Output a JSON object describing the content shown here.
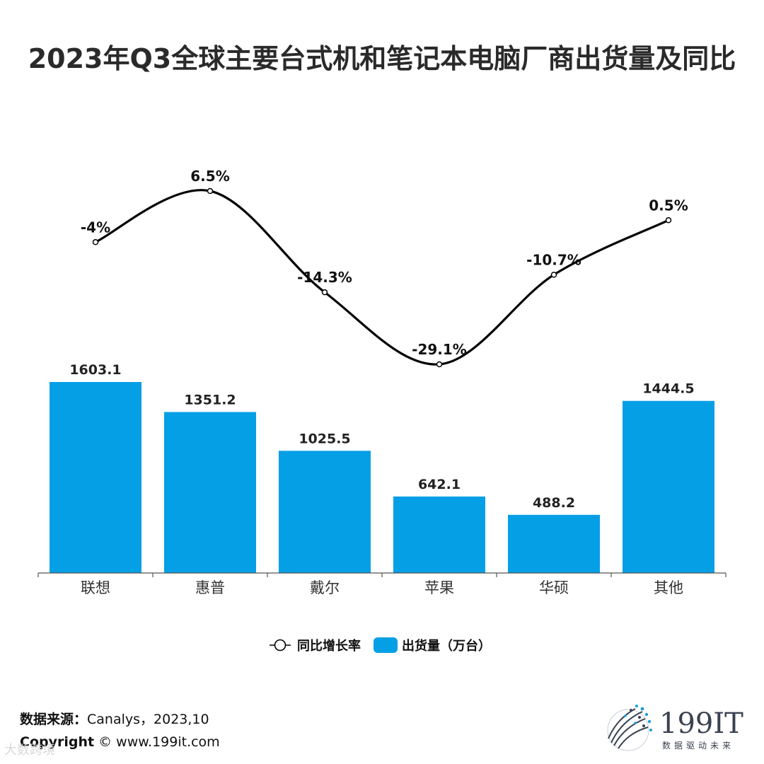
{
  "title": "2023年Q3全球主要台式机和笔记本电脑厂商出货量及同比",
  "chart_data": {
    "type": "bar",
    "categories": [
      "联想",
      "惠普",
      "戴尔",
      "苹果",
      "华硕",
      "其他"
    ],
    "series": [
      {
        "name": "出货量（万台）",
        "type": "bar",
        "values": [
          1603.1,
          1351.2,
          1025.5,
          642.1,
          488.2,
          1444.5
        ],
        "labels": [
          "1603.1",
          "1351.2",
          "1025.5",
          "642.1",
          "488.2",
          "1444.5"
        ],
        "color": "#059fe6"
      },
      {
        "name": "同比增长率",
        "type": "line",
        "values": [
          -4,
          6.5,
          -14.3,
          -29.1,
          -10.7,
          0.5
        ],
        "labels": [
          "-4%",
          "6.5%",
          "-14.3%",
          "-29.1%",
          "-10.7%",
          "0.5%"
        ],
        "color": "#000000",
        "smooth": true
      }
    ],
    "bar_ylim": [
      0,
      1800
    ],
    "line_ylim": [
      -29.1,
      6.5
    ],
    "legend_placement": "bottom-center",
    "grid": false
  },
  "footer": {
    "source_label": "数据来源：",
    "source_value": "Canalys，2023,10",
    "copyright_label": "Copyright",
    "copyright_value": "© www.199it.com"
  },
  "logo": {
    "brand": "199IT",
    "tagline": "数据驱动未来"
  },
  "watermark": "大数跨境"
}
